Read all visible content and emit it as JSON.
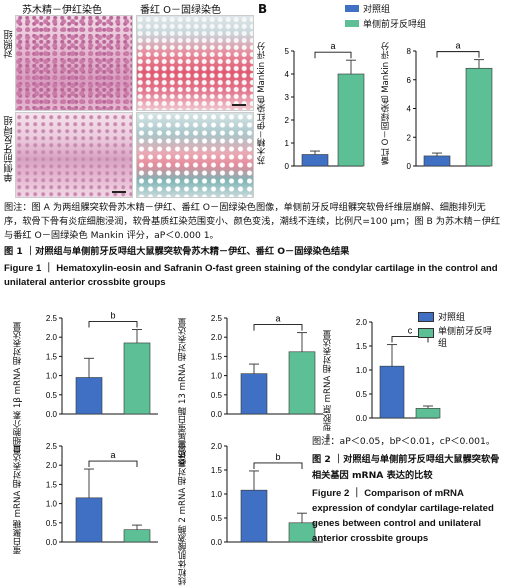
{
  "figure1": {
    "panel_a_cols": [
      "苏木精－伊红染色",
      "番红 O－固绿染色"
    ],
    "panel_a_rows": [
      "对照组",
      "单侧前牙反㖊组"
    ],
    "panel_b_label": "B",
    "colors": {
      "control": "#3f70c4",
      "treated": "#5cbf95",
      "he_pink": "#e3a6c6",
      "safranin_red": "#e05a73"
    },
    "caption_zh": "图注：图 A 为两组髁突软骨苏木精－伊红、番红 O－固绿染色图像，单侧前牙反㖊组髁突软骨纤维层崩解、细胞排列无序，软骨下骨有炎症细胞浸润，软骨基质红染范围变小、颜色变浅，潮线不连续，比例尺=100 μm；图 B 为苏木精－伊红与番红 O－固绿染色 Mankin 评分，aP＜0.000 1。",
    "title_zh": "图 1 ｜对照组与单侧前牙反㖊组大鼠髁突软骨苏木精－伊红、番红 O－固绿染色结果",
    "title_en": "Figure 1 ｜ Hematoxylin-eosin and Safranin O-fast green staining of the condylar cartilage in the control and unilateral anterior crossbite groups"
  },
  "legend": {
    "control": "对照组",
    "treated": "单侧前牙反㖊组"
  },
  "figure2": {
    "caption_zh": "图注：aP＜0.05，bP＜0.01，cP＜0.001。",
    "title_zh": "图 2 ｜对照组与单侧前牙反㖊组大鼠髁突软骨相关基因 mRNA 表达的比较",
    "title_en": "Figure 2 ｜ Comparison of mRNA expression of condylar cartilage-related genes between control and unilateral anterior crossbite groups"
  },
  "chart_data": [
    {
      "type": "bar",
      "ylabel": "苏木精－伊红染色 Mankin 评分",
      "categories": [
        "对照组",
        "单侧前牙反㖊组"
      ],
      "values": [
        0.5,
        4.0
      ],
      "errors": [
        0.15,
        0.6
      ],
      "ylim": [
        0,
        5
      ],
      "yticks": [
        0,
        1,
        2,
        3,
        4,
        5
      ],
      "sig": "a"
    },
    {
      "type": "bar",
      "ylabel": "番红 O－固绿染色 Mankin 评分",
      "categories": [
        "对照组",
        "单侧前牙反㖊组"
      ],
      "values": [
        0.7,
        6.8
      ],
      "errors": [
        0.2,
        0.6
      ],
      "ylim": [
        0,
        8
      ],
      "yticks": [
        0,
        2,
        4,
        6,
        8
      ],
      "sig": "a"
    },
    {
      "type": "bar",
      "ylabel": "白细胞介素 1β mRNA 相对表达量",
      "categories": [
        "对照组",
        "单侧前牙反㖊组"
      ],
      "values": [
        0.95,
        1.85
      ],
      "errors": [
        0.5,
        0.35
      ],
      "ylim": [
        0,
        2.5
      ],
      "yticks": [
        0.0,
        0.5,
        1.0,
        1.5,
        2.0,
        2.5
      ],
      "sig": "b"
    },
    {
      "type": "bar",
      "ylabel": "基质金属蛋白酶 13 mRNA 相对表达量",
      "categories": [
        "对照组",
        "单侧前牙反㖊组"
      ],
      "values": [
        1.05,
        1.62
      ],
      "errors": [
        0.25,
        0.5
      ],
      "ylim": [
        0,
        2.5
      ],
      "yticks": [
        0.0,
        0.5,
        1.0,
        1.5,
        2.0,
        2.5
      ],
      "sig": "a"
    },
    {
      "type": "bar",
      "ylabel": "Ⅱ型胶原 mRNA 相对表达量",
      "categories": [
        "对照组",
        "单侧前牙反㖊组"
      ],
      "values": [
        1.08,
        0.2
      ],
      "errors": [
        0.45,
        0.05
      ],
      "ylim": [
        0,
        2.0
      ],
      "yticks": [
        0.0,
        0.5,
        1.0,
        1.5,
        2.0
      ],
      "sig": "c"
    },
    {
      "type": "bar",
      "ylabel": "蛋白聚糖 mRNA 相对表达量",
      "categories": [
        "对照组",
        "单侧前牙反㖊组"
      ],
      "values": [
        1.15,
        0.32
      ],
      "errors": [
        0.75,
        0.12
      ],
      "ylim": [
        0,
        2.5
      ],
      "yticks": [
        0.0,
        0.5,
        1.0,
        1.5,
        2.0,
        2.5
      ],
      "sig": "a"
    },
    {
      "type": "bar",
      "ylabel": "线粒体肌酸激酶 2 mRNA 相对表达量",
      "categories": [
        "对照组",
        "单侧前牙反㖊组"
      ],
      "values": [
        1.08,
        0.4
      ],
      "errors": [
        0.4,
        0.2
      ],
      "ylim": [
        0,
        2.0
      ],
      "yticks": [
        0.0,
        0.5,
        1.0,
        1.5,
        2.0
      ],
      "sig": "b"
    }
  ]
}
